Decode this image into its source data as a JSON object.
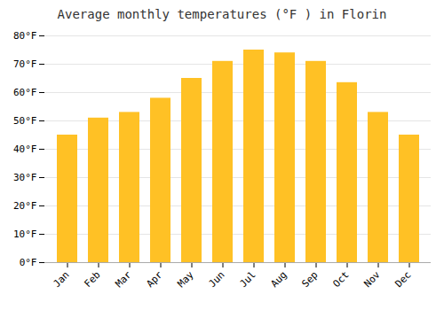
{
  "chart_data": {
    "type": "bar",
    "title": "Average monthly temperatures (°F ) in Florin",
    "categories": [
      "Jan",
      "Feb",
      "Mar",
      "Apr",
      "May",
      "Jun",
      "Jul",
      "Aug",
      "Sep",
      "Oct",
      "Nov",
      "Dec"
    ],
    "values": [
      45,
      51,
      53,
      58,
      65,
      71,
      75,
      74,
      71,
      63.5,
      53,
      45
    ],
    "color": "#FFC125",
    "ylim": [
      0,
      80
    ],
    "yticks": [
      {
        "value": 0,
        "label": "0°F"
      },
      {
        "value": 10,
        "label": "10°F"
      },
      {
        "value": 20,
        "label": "20°F"
      },
      {
        "value": 30,
        "label": "30°F"
      },
      {
        "value": 40,
        "label": "40°F"
      },
      {
        "value": 50,
        "label": "50°F"
      },
      {
        "value": 60,
        "label": "60°F"
      },
      {
        "value": 70,
        "label": "70°F"
      },
      {
        "value": 80,
        "label": "80°F"
      }
    ],
    "grid": true
  }
}
